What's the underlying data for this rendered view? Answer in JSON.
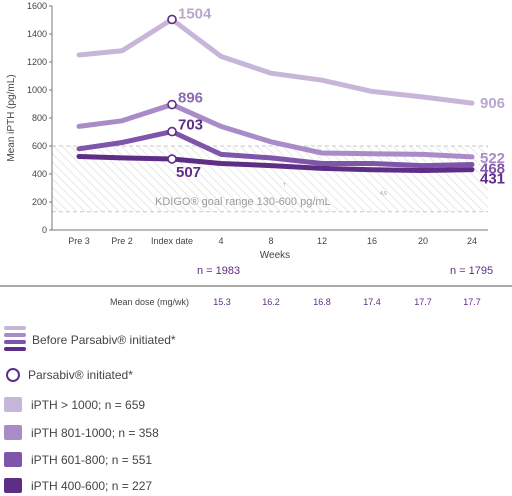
{
  "chart_data": {
    "type": "line",
    "ylabel": "Mean iPTH (pg/mL)",
    "xlabel": "Weeks",
    "ylim": [
      0,
      1600
    ],
    "yticks": [
      0,
      200,
      400,
      600,
      800,
      1000,
      1200,
      1400,
      1600
    ],
    "categories": [
      "Pre 3",
      "Pre 2",
      "Index date",
      "4",
      "8",
      "12",
      "16",
      "20",
      "24"
    ],
    "series": [
      {
        "name": "iPTH > 1000; n = 659",
        "color": "#c7b6d9",
        "values": [
          1250,
          1280,
          1504,
          1240,
          1120,
          1070,
          990,
          950,
          906
        ],
        "end_label": "906",
        "index_label": "1504"
      },
      {
        "name": "iPTH 801-1000; n = 358",
        "color": "#a98bc7",
        "values": [
          740,
          780,
          896,
          740,
          630,
          550,
          545,
          540,
          522
        ],
        "end_label": "522",
        "index_label": "896"
      },
      {
        "name": "iPTH 601-800; n = 551",
        "color": "#7e55a8",
        "values": [
          580,
          625,
          703,
          540,
          515,
          475,
          475,
          460,
          468
        ],
        "end_label": "468",
        "index_label": "703"
      },
      {
        "name": "iPTH 400-600; n = 227",
        "color": "#5e2d86",
        "values": [
          525,
          515,
          507,
          475,
          460,
          440,
          430,
          425,
          431
        ],
        "end_label": "431",
        "index_label": "507"
      }
    ],
    "goal_range": {
      "low": 130,
      "high": 600,
      "label": "KDIGO® goal range  130-600 pg/mL",
      "sup": "4,5",
      "mark": "†"
    },
    "n_labels": {
      "start": "n = 1983",
      "end": "n = 1795"
    },
    "dose": {
      "title": "Mean dose (mg/wk)",
      "values": [
        "15.3",
        "16.2",
        "16.8",
        "17.4",
        "17.7",
        "17.7"
      ]
    }
  },
  "legend": {
    "before_label": "Before Parsabiv® initiated*",
    "initiated_label": "Parsabiv® initiated*",
    "items": [
      {
        "label": "iPTH > 1000; n = 659",
        "color": "#c7b6d9"
      },
      {
        "label": "iPTH 801-1000; n = 358",
        "color": "#a98bc7"
      },
      {
        "label": "iPTH 601-800; n = 551",
        "color": "#7e55a8"
      },
      {
        "label": "iPTH 400-600; n = 227",
        "color": "#5e2d86"
      }
    ]
  }
}
